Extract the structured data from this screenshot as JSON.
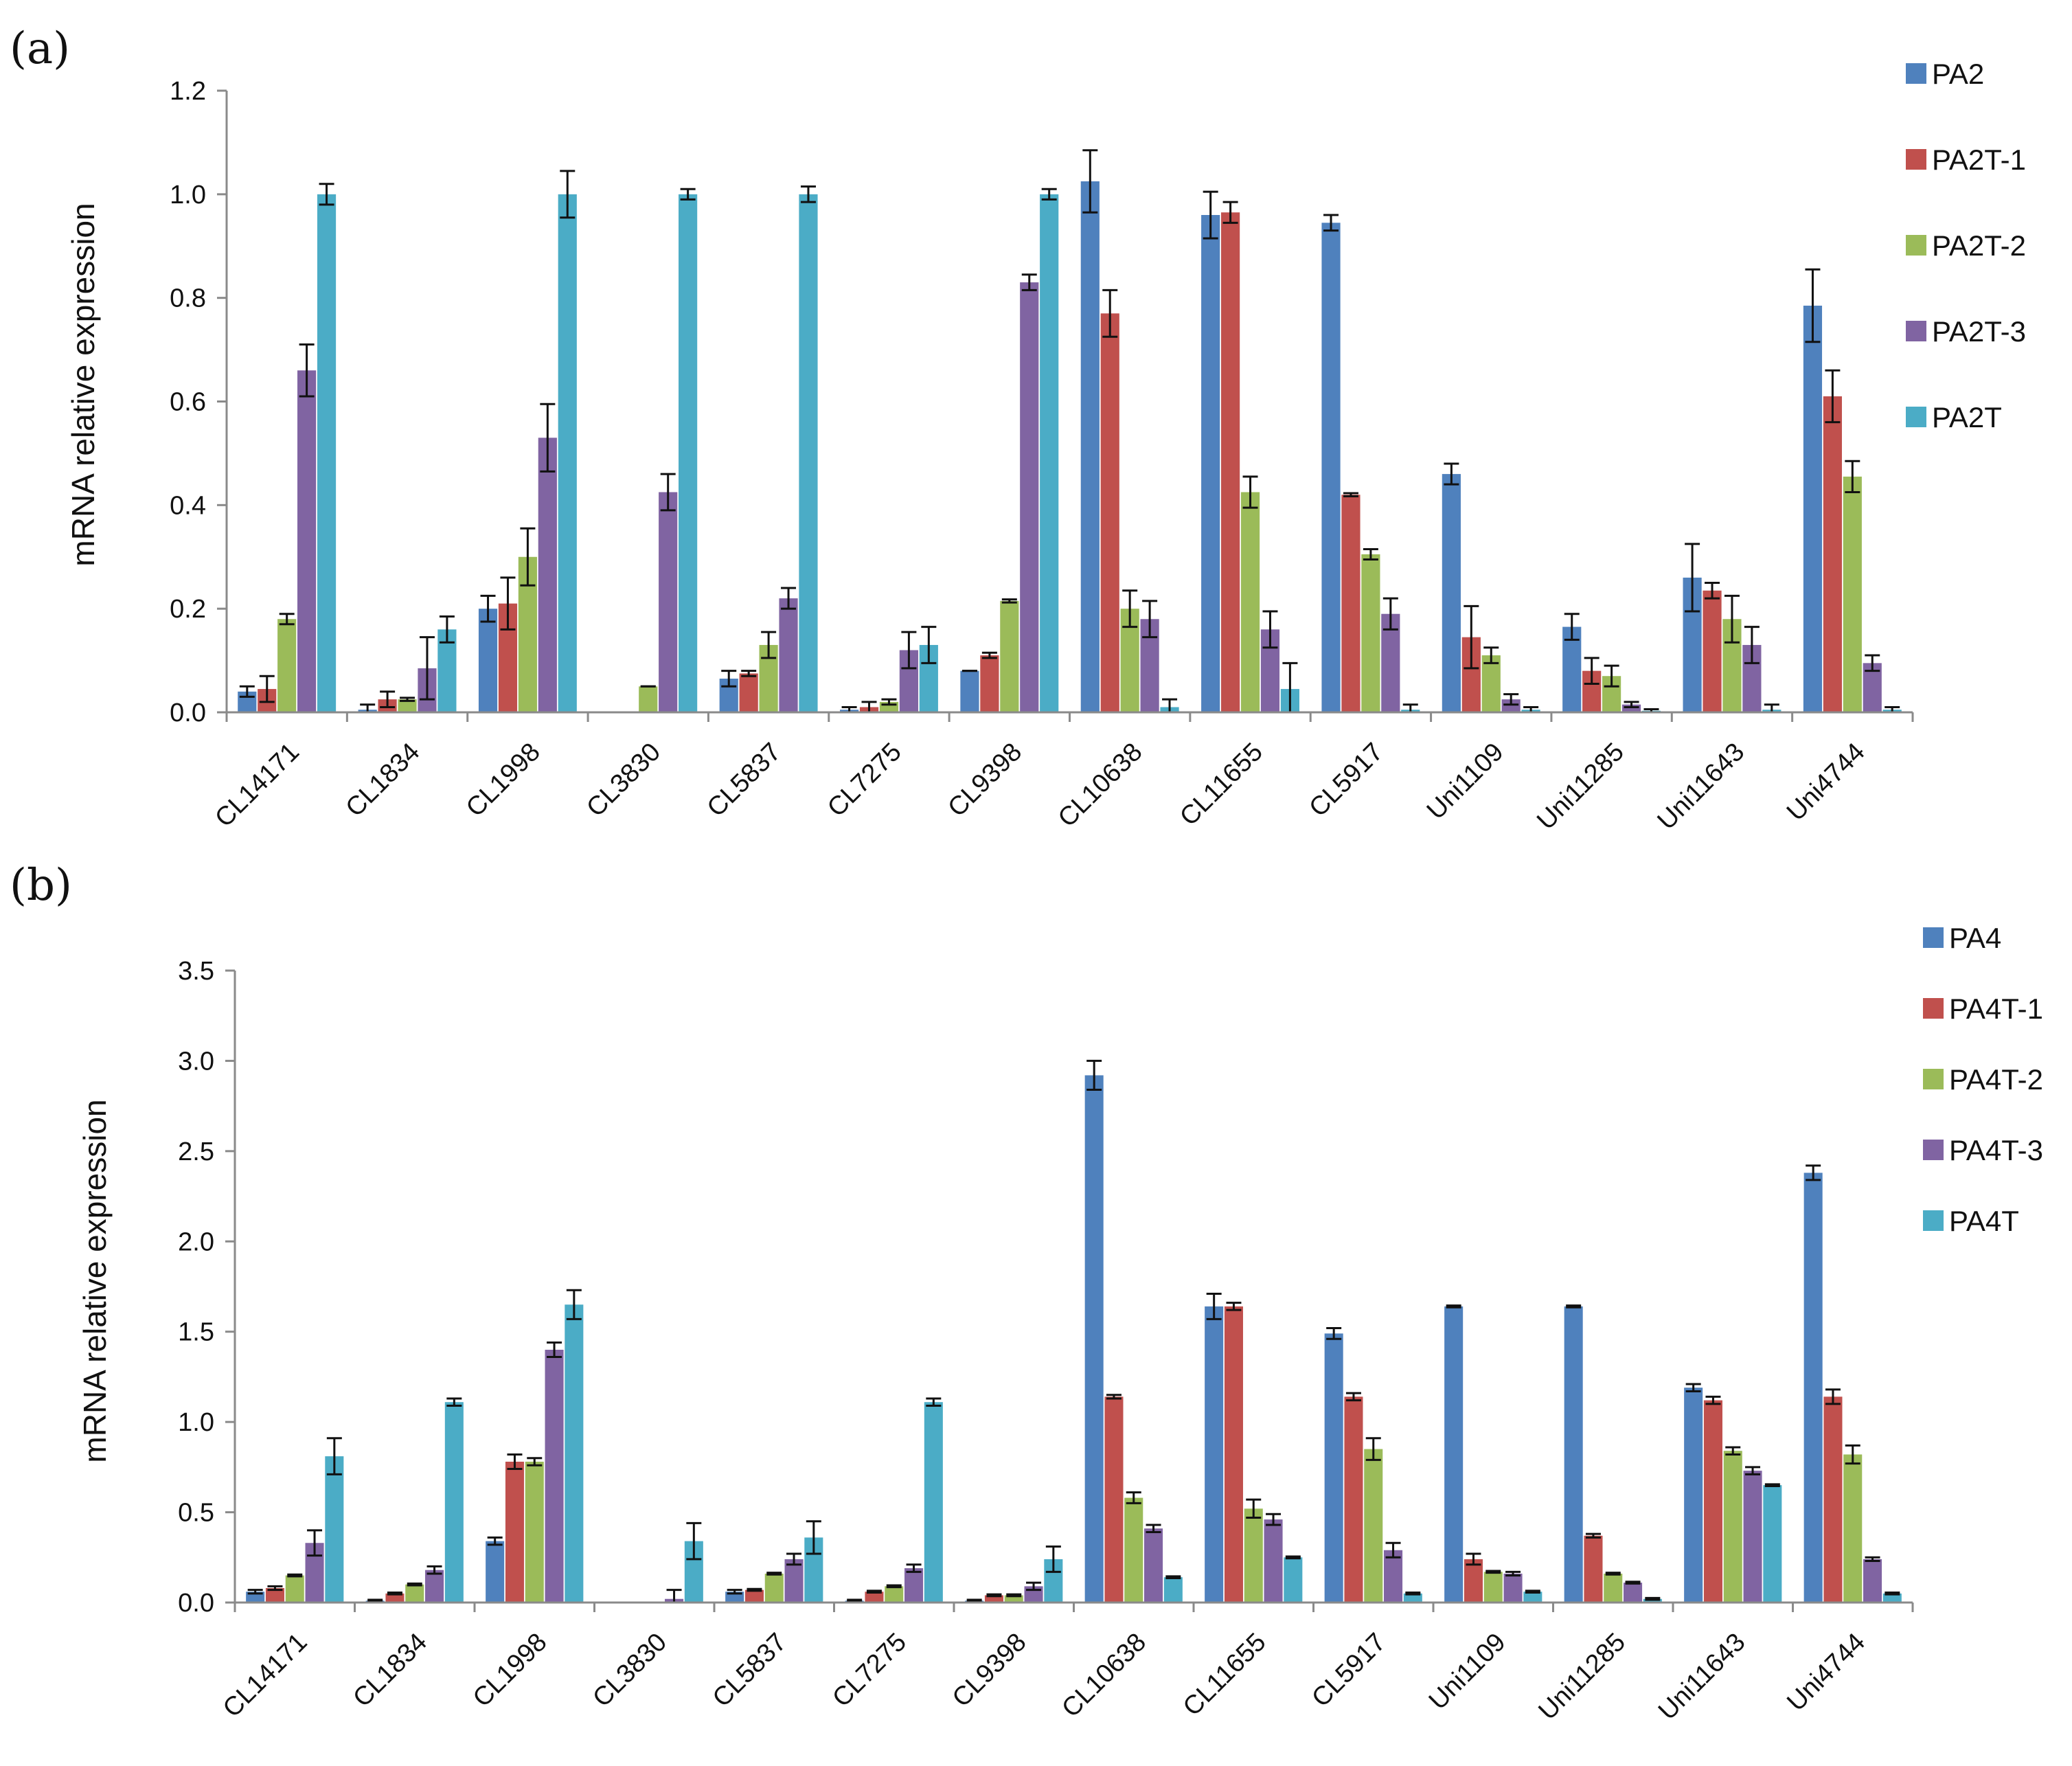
{
  "chart_data": [
    {
      "panel": "(a)",
      "type": "bar",
      "ylabel": "mRNA relative expression",
      "xlabel": "",
      "ylim": [
        0,
        1.2
      ],
      "yticks": [
        "0.0",
        "0.2",
        "0.4",
        "0.6",
        "0.8",
        "1.0",
        "1.2"
      ],
      "categories": [
        "CL14171",
        "CL1834",
        "CL1998",
        "CL3830",
        "CL5837",
        "CL7275",
        "CL9398",
        "CL10638",
        "CL11655",
        "CL5917",
        "Uni1109",
        "Uni11285",
        "Uni11643",
        "Uni4744"
      ],
      "series": [
        {
          "name": "PA2",
          "color": "#4F81BD",
          "values": [
            0.04,
            0.005,
            0.2,
            0.0,
            0.065,
            0.005,
            0.08,
            1.025,
            0.96,
            0.945,
            0.46,
            0.165,
            0.26,
            0.785
          ],
          "errors": [
            0.01,
            0.01,
            0.025,
            0.0,
            0.015,
            0.005,
            0.0,
            0.06,
            0.045,
            0.015,
            0.02,
            0.025,
            0.065,
            0.07
          ]
        },
        {
          "name": "PA2T-1",
          "color": "#C0504D",
          "values": [
            0.045,
            0.025,
            0.21,
            0.0,
            0.075,
            0.01,
            0.11,
            0.77,
            0.965,
            0.42,
            0.145,
            0.08,
            0.235,
            0.61
          ],
          "errors": [
            0.025,
            0.015,
            0.05,
            0.0,
            0.005,
            0.01,
            0.005,
            0.045,
            0.02,
            0.003,
            0.06,
            0.025,
            0.015,
            0.05
          ]
        },
        {
          "name": "PA2T-2",
          "color": "#9BBB59",
          "values": [
            0.18,
            0.025,
            0.3,
            0.05,
            0.13,
            0.02,
            0.215,
            0.2,
            0.425,
            0.305,
            0.11,
            0.07,
            0.18,
            0.455
          ],
          "errors": [
            0.01,
            0.003,
            0.055,
            0.0,
            0.025,
            0.005,
            0.003,
            0.035,
            0.03,
            0.01,
            0.015,
            0.02,
            0.045,
            0.03
          ]
        },
        {
          "name": "PA2T-3",
          "color": "#8064A2",
          "values": [
            0.66,
            0.085,
            0.53,
            0.425,
            0.22,
            0.12,
            0.83,
            0.18,
            0.16,
            0.19,
            0.025,
            0.015,
            0.13,
            0.095
          ],
          "errors": [
            0.05,
            0.06,
            0.065,
            0.035,
            0.02,
            0.035,
            0.015,
            0.035,
            0.035,
            0.03,
            0.01,
            0.005,
            0.035,
            0.015
          ]
        },
        {
          "name": "PA2T",
          "color": "#4BACC6",
          "values": [
            1.0,
            0.16,
            1.0,
            1.0,
            1.0,
            0.13,
            1.0,
            0.01,
            0.045,
            0.005,
            0.005,
            0.003,
            0.005,
            0.005
          ],
          "errors": [
            0.02,
            0.025,
            0.045,
            0.01,
            0.015,
            0.035,
            0.01,
            0.015,
            0.05,
            0.01,
            0.005,
            0.003,
            0.01,
            0.005
          ]
        }
      ]
    },
    {
      "panel": "(b)",
      "type": "bar",
      "ylabel": "mRNA relative expression",
      "xlabel": "",
      "ylim": [
        0,
        3.5
      ],
      "yticks": [
        "0.0",
        "0.5",
        "1.0",
        "1.5",
        "2.0",
        "2.5",
        "3.0",
        "3.5"
      ],
      "categories": [
        "CL14171",
        "CL1834",
        "CL1998",
        "CL3830",
        "CL5837",
        "CL7275",
        "CL9398",
        "CL10638",
        "CL11655",
        "CL5917",
        "Uni1109",
        "Uni11285",
        "Uni11643",
        "Uni4744"
      ],
      "series": [
        {
          "name": "PA4",
          "color": "#4F81BD",
          "values": [
            0.06,
            0.01,
            0.34,
            0.0,
            0.06,
            0.01,
            0.01,
            2.92,
            1.64,
            1.49,
            1.64,
            1.64,
            1.19,
            2.38
          ],
          "errors": [
            0.01,
            0.005,
            0.02,
            0.0,
            0.01,
            0.005,
            0.005,
            0.08,
            0.07,
            0.03,
            0.005,
            0.005,
            0.02,
            0.04
          ]
        },
        {
          "name": "PA4T-1",
          "color": "#C0504D",
          "values": [
            0.08,
            0.05,
            0.78,
            0.0,
            0.07,
            0.06,
            0.04,
            1.14,
            1.64,
            1.14,
            0.24,
            0.37,
            1.12,
            1.14
          ],
          "errors": [
            0.01,
            0.005,
            0.04,
            0.0,
            0.005,
            0.005,
            0.005,
            0.01,
            0.02,
            0.02,
            0.03,
            0.01,
            0.02,
            0.04
          ]
        },
        {
          "name": "PA4T-2",
          "color": "#9BBB59",
          "values": [
            0.15,
            0.1,
            0.78,
            0.0,
            0.16,
            0.09,
            0.04,
            0.58,
            0.52,
            0.85,
            0.17,
            0.16,
            0.84,
            0.82
          ],
          "errors": [
            0.005,
            0.005,
            0.02,
            0.0,
            0.005,
            0.005,
            0.005,
            0.03,
            0.05,
            0.06,
            0.005,
            0.005,
            0.02,
            0.05
          ]
        },
        {
          "name": "PA4T-3",
          "color": "#8064A2",
          "values": [
            0.33,
            0.18,
            1.4,
            0.02,
            0.24,
            0.19,
            0.09,
            0.41,
            0.46,
            0.29,
            0.16,
            0.11,
            0.73,
            0.24
          ],
          "errors": [
            0.07,
            0.02,
            0.04,
            0.05,
            0.03,
            0.02,
            0.02,
            0.02,
            0.03,
            0.04,
            0.01,
            0.005,
            0.02,
            0.01
          ]
        },
        {
          "name": "PA4T",
          "color": "#4BACC6",
          "values": [
            0.81,
            1.11,
            1.65,
            0.34,
            0.36,
            1.11,
            0.24,
            0.14,
            0.25,
            0.05,
            0.06,
            0.02,
            0.65,
            0.05
          ],
          "errors": [
            0.1,
            0.02,
            0.08,
            0.1,
            0.09,
            0.02,
            0.07,
            0.005,
            0.005,
            0.005,
            0.005,
            0.005,
            0.005,
            0.005
          ]
        }
      ]
    }
  ]
}
